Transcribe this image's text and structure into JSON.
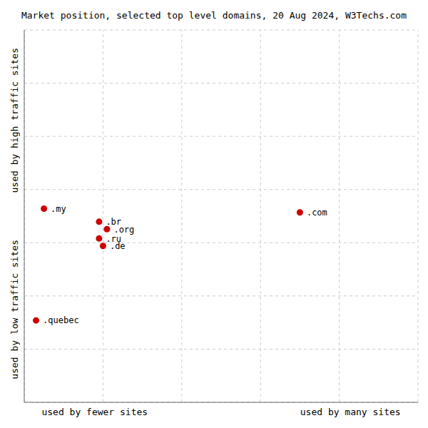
{
  "chart_data": {
    "type": "scatter",
    "title": "Market position, selected top level domains, 20 Aug 2024, W3Techs.com",
    "xlabel_left": "used by fewer sites",
    "xlabel_right": "used by many sites",
    "ylabel_top": "used by high traffic sites",
    "ylabel_bottom": "used by low traffic sites",
    "series": [
      {
        "color": "#cc0000",
        "labels": [
          ".my",
          ".quebec",
          ".com",
          ".br",
          ".org",
          ".ru",
          ".de"
        ],
        "x": [
          0.05,
          0.03,
          0.7,
          0.19,
          0.21,
          0.19,
          0.2
        ],
        "values": [
          0.52,
          0.22,
          0.51,
          0.485,
          0.465,
          0.44,
          0.42
        ]
      }
    ],
    "xlim": [
      0,
      1
    ],
    "ylim": [
      0,
      1
    ],
    "xticks": [
      0,
      0.2,
      0.4,
      0.6,
      0.8,
      1
    ],
    "yticks": [
      0,
      0.14285714285714285,
      0.2857142857142857,
      0.42857142857142855,
      0.5714285714285714,
      0.7142857142857143,
      0.8571428571428571,
      1
    ],
    "grid": true,
    "tick_labels": false
  }
}
